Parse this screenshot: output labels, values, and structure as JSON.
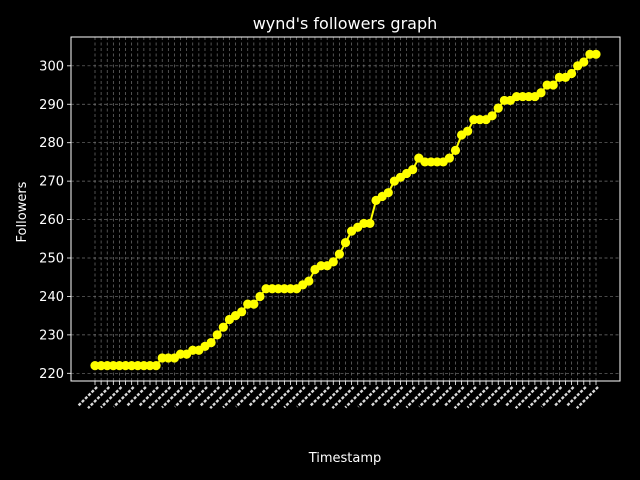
{
  "chart_data": {
    "type": "line",
    "title": "wynd's followers graph",
    "xlabel": "Timestamp",
    "ylabel": "Followers",
    "ylim": [
      218,
      307.5
    ],
    "yticks": [
      220,
      230,
      240,
      250,
      260,
      270,
      280,
      290,
      300
    ],
    "grid": true,
    "grid_style": "dashed",
    "x_tick_labels_note": "illegible, overlapping rotated date labels",
    "series": [
      {
        "color": "#ffff00",
        "marker": "circle",
        "values": [
          222,
          222,
          222,
          222,
          222,
          222,
          222,
          222,
          222,
          222,
          222,
          224,
          224,
          224,
          225,
          225,
          226,
          226,
          227,
          228,
          230,
          232,
          234,
          235,
          236,
          238,
          238,
          240,
          242,
          242,
          242,
          242,
          242,
          242,
          243,
          244,
          247,
          248,
          248,
          249,
          251,
          254,
          257,
          258,
          259,
          259,
          265,
          266,
          267,
          270,
          271,
          272,
          273,
          276,
          275,
          275,
          275,
          275,
          276,
          278,
          282,
          283,
          286,
          286,
          286,
          287,
          289,
          291,
          291,
          292,
          292,
          292,
          292,
          293,
          295,
          295,
          297,
          297,
          298,
          300,
          301,
          303,
          303
        ]
      }
    ]
  }
}
